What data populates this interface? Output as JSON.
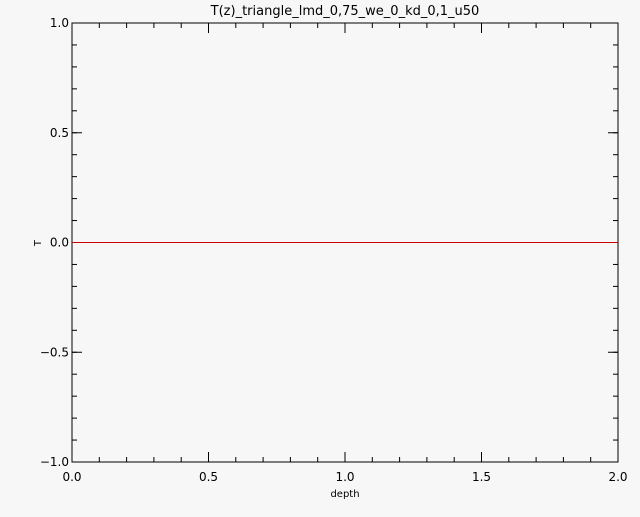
{
  "chart_data": {
    "type": "line",
    "title": "T(z)_triangle_lmd_0,75_we_0_kd_0,1_u50",
    "xlabel": "depth",
    "ylabel": "T",
    "xlim": [
      0.0,
      2.0
    ],
    "ylim": [
      -1.0,
      1.0
    ],
    "x_ticks": [
      {
        "value": 0.0,
        "label": "0.0"
      },
      {
        "value": 0.5,
        "label": "0.5"
      },
      {
        "value": 1.0,
        "label": "1.0"
      },
      {
        "value": 1.5,
        "label": "1.5"
      },
      {
        "value": 2.0,
        "label": "2.0"
      }
    ],
    "y_ticks": [
      {
        "value": -1.0,
        "label": "−1.0"
      },
      {
        "value": -0.5,
        "label": "−0.5"
      },
      {
        "value": 0.0,
        "label": "0.0"
      },
      {
        "value": 0.5,
        "label": "0.5"
      },
      {
        "value": 1.0,
        "label": "1.0"
      }
    ],
    "x_minor_step": 0.1,
    "y_minor_step": 0.1,
    "grid": false,
    "series": [
      {
        "color": "#cc0000",
        "x": [
          0.0,
          2.0
        ],
        "y": [
          0.0,
          0.0
        ]
      }
    ]
  }
}
